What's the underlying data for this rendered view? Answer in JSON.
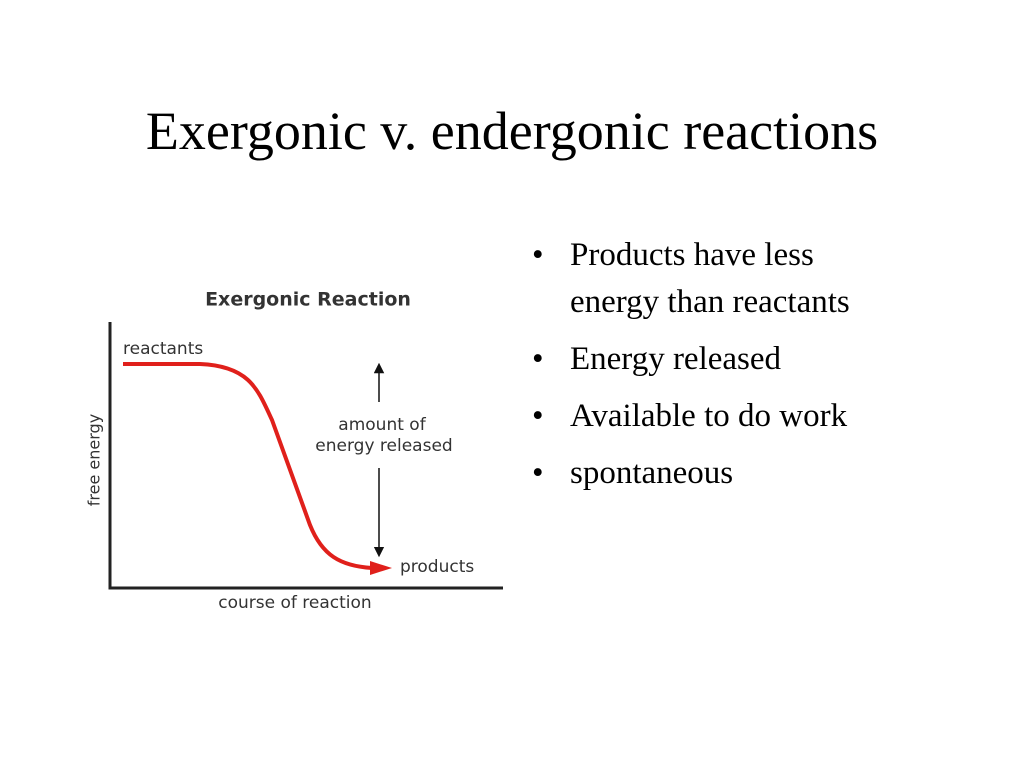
{
  "title": "Exergonic v. endergonic reactions",
  "diagram": {
    "title": "Exergonic Reaction",
    "y_axis_label": "free energy",
    "x_axis_label": "course of reaction",
    "start_label": "reactants",
    "end_label": "products",
    "arrow_label": [
      "amount of",
      "energy released"
    ]
  },
  "bullets": [
    [
      "Products have less",
      "energy than reactants"
    ],
    [
      "Energy released"
    ],
    [
      "Available to do work"
    ],
    [
      "spontaneous"
    ]
  ]
}
